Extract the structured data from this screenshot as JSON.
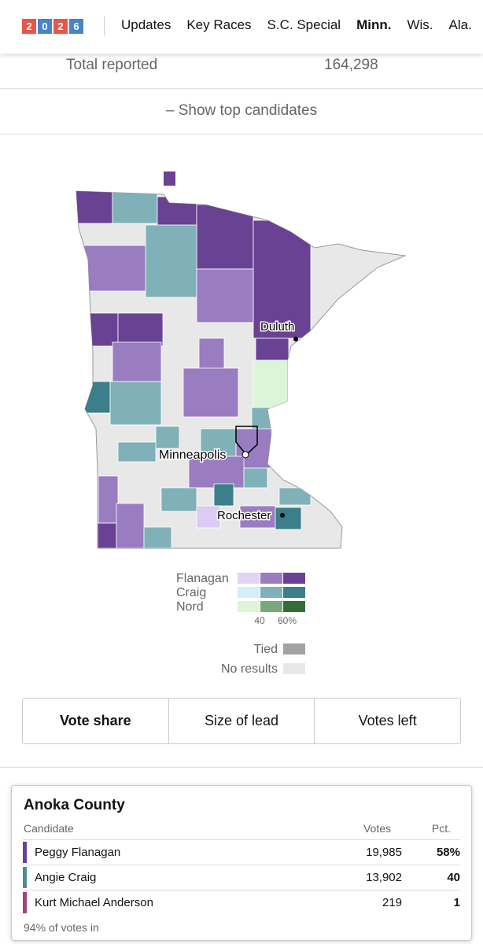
{
  "nav": {
    "logo": [
      "2",
      "0",
      "2",
      "6"
    ],
    "items": [
      "Updates",
      "Key Races",
      "S.C. Special",
      "Minn.",
      "Wis.",
      "Ala."
    ]
  },
  "summary": {
    "label": "Total reported",
    "value": "164,298"
  },
  "toggle": "– Show top candidates",
  "map": {
    "cities": [
      "Duluth",
      "Minneapolis",
      "Rochester"
    ],
    "legend": {
      "candidates": [
        "Flanagan",
        "Craig",
        "Nord"
      ],
      "scale": [
        "40",
        "60%"
      ],
      "tied": "Tied",
      "no_results": "No results"
    }
  },
  "view_buttons": [
    "Vote share",
    "Size of lead",
    "Votes left"
  ],
  "county_card": {
    "title": "Anoka County",
    "columns": [
      "Candidate",
      "Votes",
      "Pct."
    ],
    "rows": [
      [
        "Peggy Flanagan",
        "19,985",
        "58%"
      ],
      [
        "Angie Craig",
        "13,902",
        "40"
      ],
      [
        "Kurt Michael Anderson",
        "219",
        "1"
      ]
    ],
    "footnote": "94% of votes in"
  }
}
